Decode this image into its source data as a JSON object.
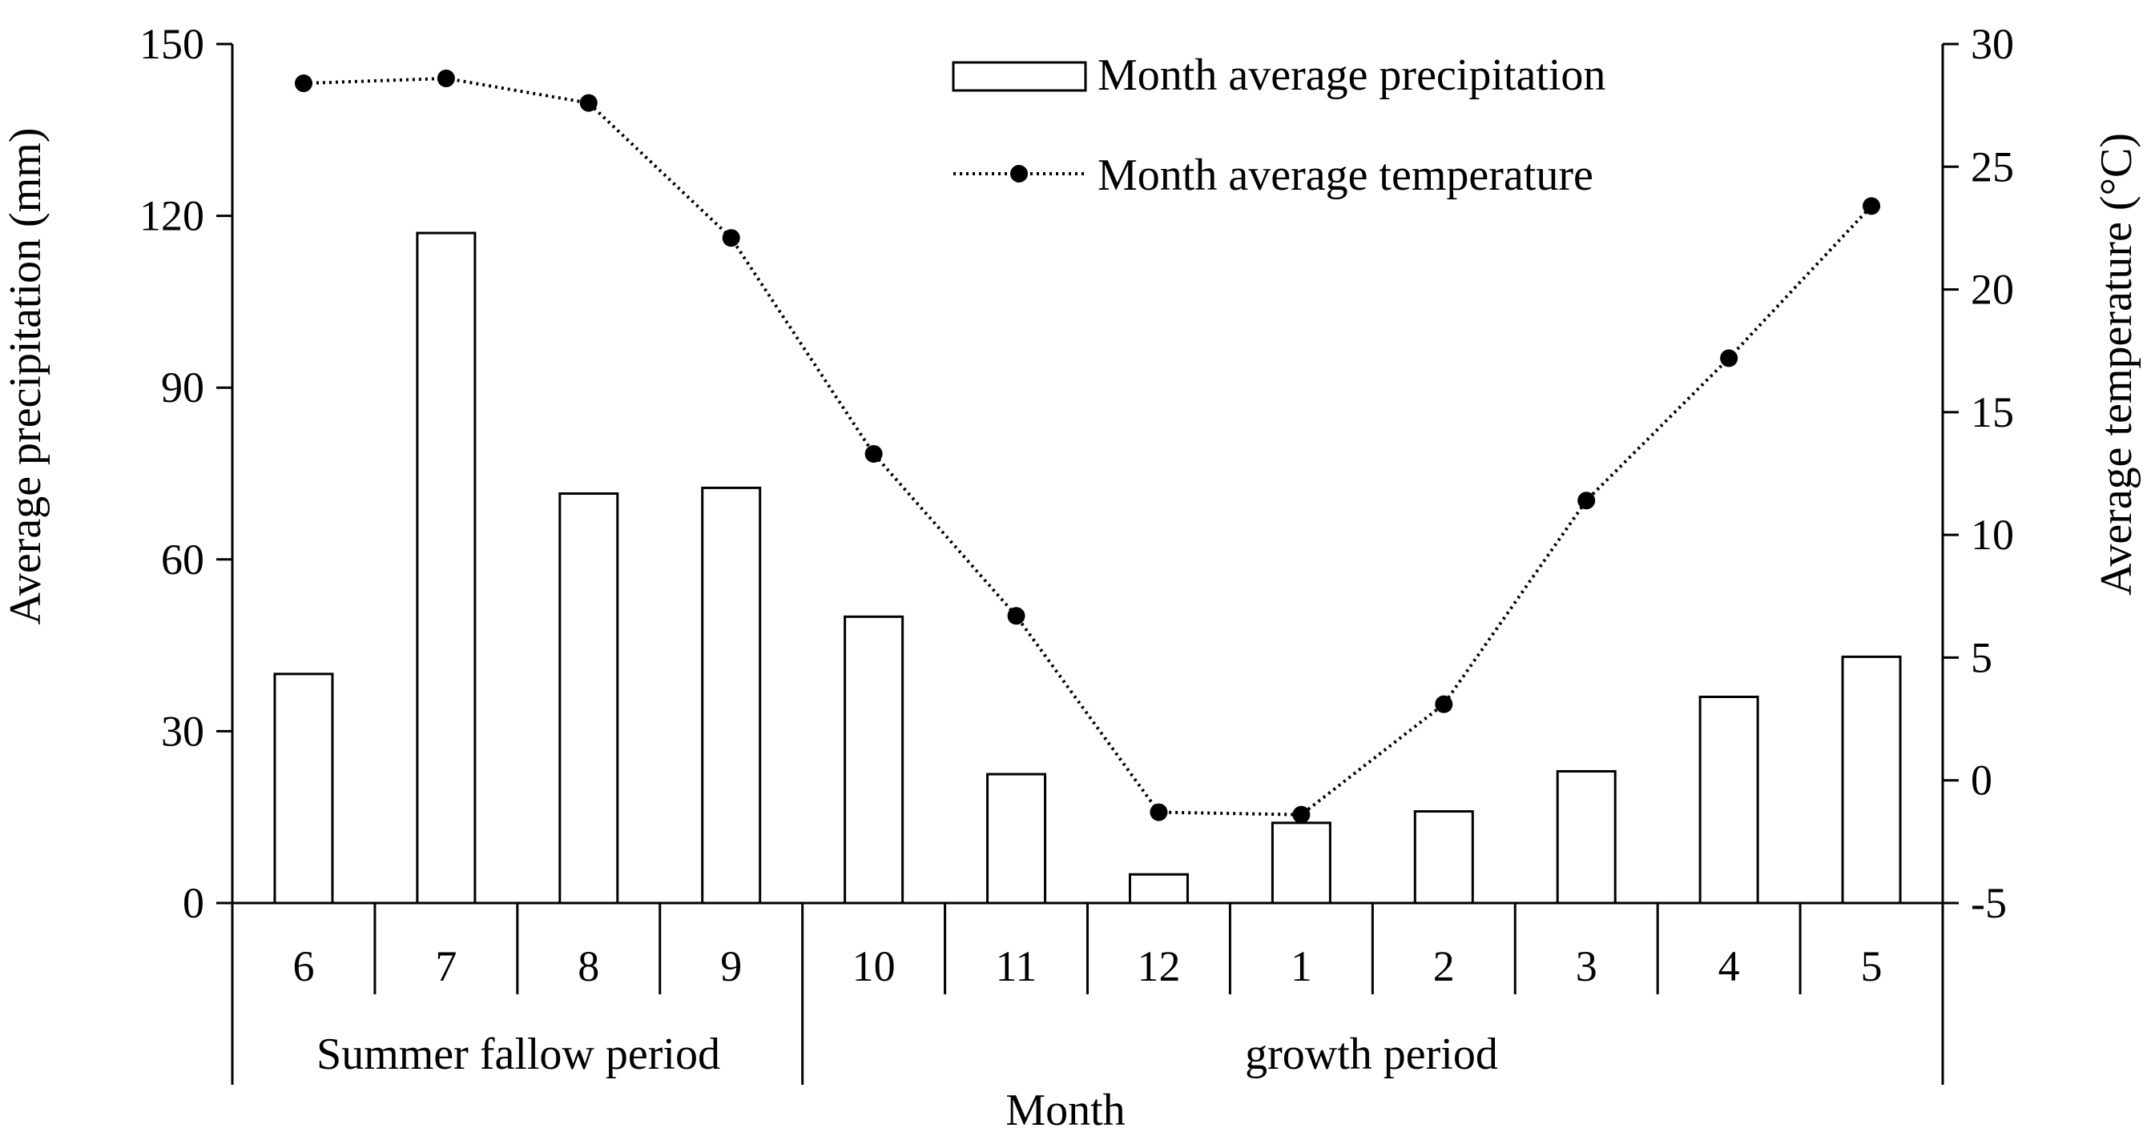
{
  "chart_data": {
    "type": "bar+line",
    "categories": [
      "6",
      "7",
      "8",
      "9",
      "10",
      "11",
      "12",
      "1",
      "2",
      "3",
      "4",
      "5"
    ],
    "series": [
      {
        "name": "Month average precipitation",
        "type": "bar",
        "axis": "left",
        "values": [
          40,
          117,
          71.5,
          72.5,
          50,
          22.5,
          5,
          14,
          16,
          23,
          36,
          43
        ]
      },
      {
        "name": "Month average temperature",
        "type": "line",
        "axis": "right",
        "values": [
          28.4,
          28.6,
          27.6,
          22.1,
          13.3,
          6.7,
          -1.3,
          -1.4,
          3.1,
          11.4,
          17.2,
          23.4
        ]
      }
    ],
    "xlabel": "Month",
    "ylabel_left": "Average precipitation (mm)",
    "ylabel_right": "Average temperature (°C)",
    "ylim_left": [
      0,
      150
    ],
    "yticks_left": [
      "0",
      "30",
      "60",
      "90",
      "120",
      "150"
    ],
    "ylim_right": [
      -5,
      30
    ],
    "yticks_right": [
      "-5",
      "0",
      "5",
      "10",
      "15",
      "20",
      "25",
      "30"
    ],
    "periods": [
      {
        "label": "Summer fallow period",
        "months": 4
      },
      {
        "label": "growth period",
        "months": 8
      }
    ],
    "legend_position": "top-center",
    "grid": false
  },
  "colors": {
    "axis": "#000000",
    "bar_fill": "#ffffff",
    "bar_stroke": "#000000",
    "line": "#000000",
    "marker": "#000000"
  }
}
